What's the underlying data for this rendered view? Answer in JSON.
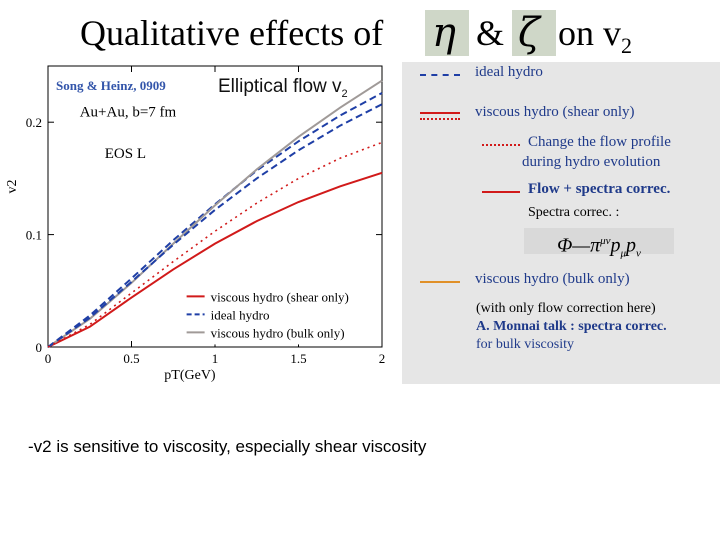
{
  "slide": {
    "title_text": "Qualitative effects of",
    "eta_symbol": "η",
    "amp": "&",
    "zeta_symbol": "ζ",
    "on_text": "on v",
    "on_sub": "2",
    "citation": "Song & Heinz, 0909",
    "subtitle": "Elliptical flow v",
    "subtitle_sub": "2",
    "bottom_note": "-v2 is sensitive to viscosity, especially shear viscosity"
  },
  "right_legend": {
    "ideal": "ideal hydro",
    "shear": "viscous hydro (shear only)",
    "change_profile_line1": "Change the flow profile",
    "change_profile_line2": "during hydro evolution",
    "flow_spectra": "Flow + spectra correc.",
    "spectra_correc": "Spectra  correc. :",
    "bulk": "viscous hydro (bulk only)",
    "bulk_note1": "(with only flow correction here)",
    "bulk_note2": "A. Monnai talk : spectra correc.",
    "bulk_note3": "for bulk viscosity"
  },
  "colors": {
    "shear_red": "#d11a1a",
    "ideal_blue": "#1f3fa6",
    "bulk_gray": "#a09a98",
    "bulk_orange": "#e09028"
  },
  "chart_data": {
    "type": "line",
    "xlabel": "pT(GeV)",
    "ylabel": "v2",
    "xlim": [
      0,
      2
    ],
    "ylim": [
      0,
      0.25
    ],
    "xticks": [
      "0",
      "0.5",
      "1",
      "1.5",
      "2"
    ],
    "yticks": [
      "0",
      "0.1",
      "0.2"
    ],
    "annotation1": "Au+Au, b=7 fm",
    "annotation2": "EOS L",
    "legend": [
      "viscous hydro (shear only)",
      "ideal hydro",
      "viscous hydro (bulk only)"
    ],
    "series": [
      {
        "name": "viscous hydro (shear only)",
        "style": "solid",
        "color": "#d11a1a",
        "x": [
          0,
          0.25,
          0.5,
          0.75,
          1.0,
          1.25,
          1.5,
          1.75,
          2.0
        ],
        "y": [
          0,
          0.018,
          0.044,
          0.069,
          0.092,
          0.112,
          0.129,
          0.143,
          0.155
        ]
      },
      {
        "name": "ideal hydro",
        "style": "dashed",
        "color": "#1f3fa6",
        "x": [
          0,
          0.25,
          0.5,
          0.75,
          1.0,
          1.25,
          1.5,
          1.75,
          2.0
        ],
        "y": [
          0,
          0.028,
          0.061,
          0.095,
          0.127,
          0.157,
          0.183,
          0.206,
          0.226
        ]
      },
      {
        "name": "viscous hydro (bulk only)",
        "style": "solid",
        "color": "#a09a98",
        "x": [
          0,
          0.25,
          0.5,
          0.75,
          1.0,
          1.25,
          1.5,
          1.75,
          2.0
        ],
        "y": [
          0,
          0.025,
          0.057,
          0.092,
          0.126,
          0.158,
          0.187,
          0.213,
          0.237
        ]
      },
      {
        "name": "blue dashed (lower)",
        "style": "dashed",
        "color": "#1f3fa6",
        "x": [
          0,
          0.25,
          0.5,
          0.75,
          1.0,
          1.25,
          1.5,
          1.75,
          2.0
        ],
        "y": [
          0,
          0.026,
          0.058,
          0.091,
          0.122,
          0.15,
          0.175,
          0.197,
          0.216
        ]
      },
      {
        "name": "dotted (flow profile)",
        "style": "dotted",
        "color": "#d11a1a",
        "x": [
          0,
          0.25,
          0.5,
          0.75,
          1.0,
          1.25,
          1.5,
          1.75,
          2.0
        ],
        "y": [
          0,
          0.02,
          0.048,
          0.076,
          0.103,
          0.128,
          0.15,
          0.168,
          0.182
        ]
      }
    ]
  }
}
